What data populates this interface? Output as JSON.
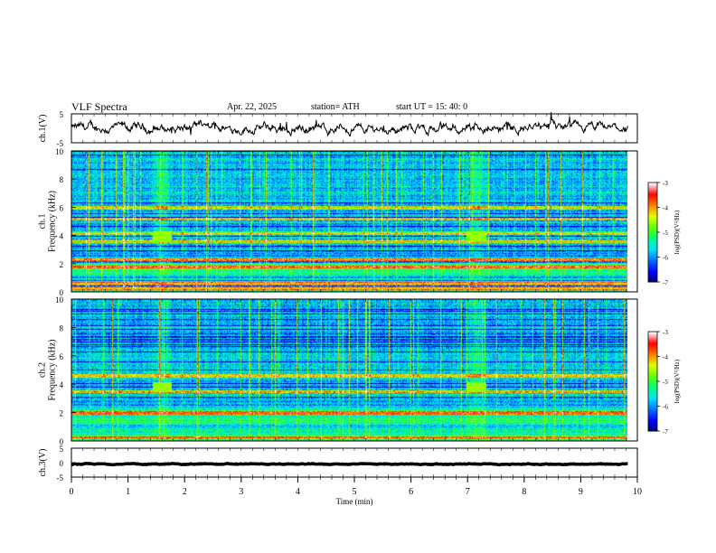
{
  "header": {
    "title": "VLF  Spectra",
    "date": "Apr. 22, 2025",
    "station": "station= ATH",
    "start": "start  UT  =   15: 40: 0"
  },
  "colorbar": {
    "label": "log(PSD)(V²/Hz)",
    "ticks": [
      "-3",
      "-4",
      "-5",
      "-6",
      "-7"
    ],
    "colors": [
      "#000070",
      "#0000ff",
      "#0070ff",
      "#00e0ff",
      "#00ff80",
      "#60ff00",
      "#e0ff00",
      "#ff8000",
      "#ff0000",
      "#ffffff"
    ]
  },
  "chart_data": [
    {
      "type": "line",
      "panel": "ch1",
      "ylabel": "ch.1(V)",
      "ylim": [
        -5,
        5
      ],
      "yticks": [
        "5",
        "-5"
      ],
      "x_range_min": [
        0,
        9.83
      ],
      "baseline_value": 0,
      "noise_amplitude": 1.2
    },
    {
      "type": "heatmap",
      "panel": "ch1-spectrogram",
      "ylabel": "ch.1\nFrequency (kHz)",
      "ylim": [
        0,
        10
      ],
      "yticks": [
        "0",
        "2",
        "4",
        "6",
        "8",
        "10"
      ],
      "value_range": [
        -7,
        -3
      ],
      "bright_events_min": [
        1.6,
        7.15
      ],
      "bright_event_freq_khz": 4,
      "persistent_bands_khz": [
        0.3,
        0.6,
        1.8,
        2.3,
        3.6,
        4.2,
        5.2,
        6.0
      ]
    },
    {
      "type": "heatmap",
      "panel": "ch2-spectrogram",
      "ylabel": "ch.2\nFrequency (kHz)",
      "ylim": [
        0,
        10
      ],
      "yticks": [
        "0",
        "2",
        "4",
        "6",
        "8",
        "10"
      ],
      "value_range": [
        -7,
        -3
      ],
      "bright_events_min": [
        1.6,
        7.15
      ],
      "bright_event_freq_khz": 3.8,
      "persistent_bands_khz": [
        0.3,
        2.0,
        3.5,
        4.6
      ]
    },
    {
      "type": "line",
      "panel": "ch3",
      "ylabel": "ch.3(V)",
      "ylim": [
        -5,
        5
      ],
      "yticks": [
        "5",
        "0",
        "-5"
      ],
      "x_range_min": [
        0,
        9.83
      ],
      "baseline_value": -0.5,
      "noise_amplitude": 0.1
    }
  ],
  "xaxis": {
    "label": "Time  (min)",
    "ticks": [
      "0",
      "1",
      "2",
      "3",
      "4",
      "5",
      "6",
      "7",
      "8",
      "9",
      "10"
    ],
    "xlim": [
      0,
      10
    ]
  }
}
